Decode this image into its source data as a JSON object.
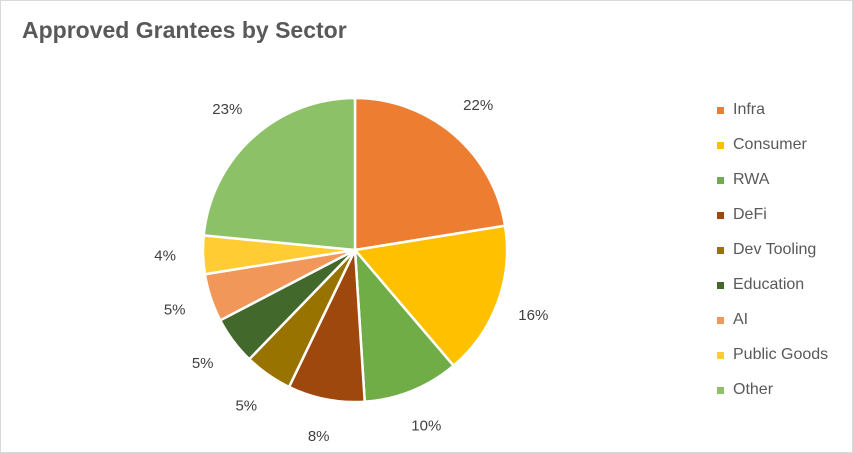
{
  "chart_data": {
    "type": "pie",
    "title": "Approved Grantees by Sector",
    "categories": [
      "Infra",
      "Consumer",
      "RWA",
      "DeFi",
      "Dev Tooling",
      "Education",
      "AI",
      "Public Goods",
      "Other"
    ],
    "values": [
      22,
      16,
      10,
      8,
      5,
      5,
      5,
      4,
      23
    ],
    "labels": [
      "22%",
      "16%",
      "10%",
      "8%",
      "5%",
      "5%",
      "5%",
      "4%",
      "23%"
    ],
    "colors": [
      "#ED7D31",
      "#FFC000",
      "#70AD47",
      "#9E480E",
      "#997300",
      "#43682B",
      "#F1975A",
      "#FFCD33",
      "#8CC168"
    ],
    "legend_position": "right",
    "start_angle": "12 o'clock, clockwise"
  }
}
